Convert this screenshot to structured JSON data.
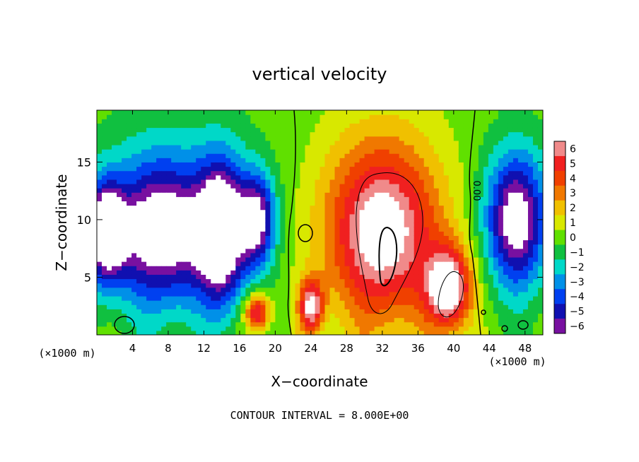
{
  "chart_data": {
    "type": "heatmap",
    "title": "vertical velocity",
    "xlabel": "X−coordinate",
    "ylabel": "Z−coordinate",
    "x_unit_left": "(×1000 m)",
    "x_unit_right": "(×1000 m)",
    "xlim": [
      0,
      50
    ],
    "ylim": [
      0,
      19.5
    ],
    "xticks": [
      4,
      8,
      12,
      16,
      20,
      24,
      28,
      32,
      36,
      40,
      44,
      48
    ],
    "xtick_labels": [
      "4",
      "8",
      "12",
      "16",
      "20",
      "24",
      "28",
      "32",
      "36",
      "40",
      "44",
      "48"
    ],
    "yticks": [
      5,
      10,
      15
    ],
    "ytick_labels": [
      "5",
      "10",
      "15"
    ],
    "colorbar": {
      "levels": [
        6,
        5,
        4,
        3,
        2,
        1,
        0,
        -1,
        -2,
        -3,
        -4,
        -5,
        -6
      ],
      "labels": [
        "6",
        "5",
        "4",
        "3",
        "2",
        "1",
        "0",
        "−1",
        "−2",
        "−3",
        "−4",
        "−5",
        "−6"
      ],
      "colors": [
        "#f08a8a",
        "#f02020",
        "#f04000",
        "#f07800",
        "#f0c000",
        "#d8e800",
        "#60e000",
        "#10c040",
        "#00d8c8",
        "#0090e8",
        "#0040f0",
        "#1010b0",
        "#7810a0"
      ]
    },
    "zero_contour_label": "0.00",
    "footer": "CONTOUR INTERVAL = 8.000E+00",
    "features": [
      {
        "kind": "updraft",
        "cx": 32,
        "cz": 9,
        "rx": 6.5,
        "rz": 8,
        "peak": 6
      },
      {
        "kind": "updraft",
        "cx": 39.5,
        "cz": 4,
        "rx": 2.5,
        "rz": 3.5,
        "peak": 6
      },
      {
        "kind": "updraft",
        "cx": 18,
        "cz": 2,
        "rx": 1.4,
        "rz": 1.6,
        "peak": 5
      },
      {
        "kind": "updraft",
        "cx": 24,
        "cz": 2.5,
        "rx": 1.4,
        "rz": 2.4,
        "peak": 5
      },
      {
        "kind": "downdraft",
        "cx": 7,
        "cz": 9,
        "rx": 6,
        "rz": 6,
        "peak": -5
      },
      {
        "kind": "downdraft",
        "cx": 14,
        "cz": 9,
        "rx": 2.6,
        "rz": 6,
        "peak": -6
      },
      {
        "kind": "downdraft",
        "cx": 18,
        "cz": 10,
        "rx": 2,
        "rz": 4,
        "peak": -5
      },
      {
        "kind": "downdraft",
        "cx": 47,
        "cz": 10,
        "rx": 3.5,
        "rz": 6,
        "peak": -6
      },
      {
        "kind": "downdraft",
        "cx": 1,
        "cz": 9,
        "rx": 2,
        "rz": 4,
        "peak": -6
      }
    ]
  }
}
